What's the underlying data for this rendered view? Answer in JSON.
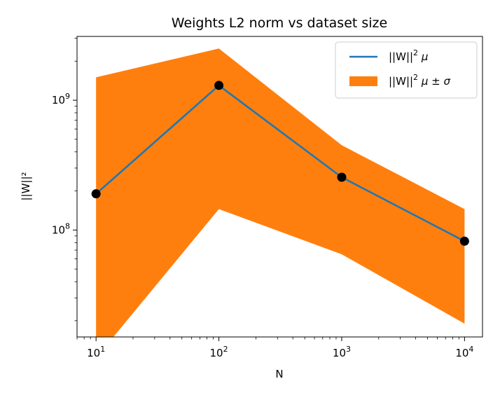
{
  "chart_data": {
    "type": "line",
    "title": "Weights L2 norm vs dataset size",
    "xlabel": "N",
    "ylabel": "||W||²",
    "xscale": "log",
    "yscale": "log",
    "xlim": [
      7,
      14000
    ],
    "ylim": [
      15000000,
      3100000000
    ],
    "x": [
      10,
      100,
      1000,
      10000
    ],
    "x_ticks": [
      {
        "value": 10,
        "base": "10",
        "exp": "1"
      },
      {
        "value": 100,
        "base": "10",
        "exp": "2"
      },
      {
        "value": 1000,
        "base": "10",
        "exp": "3"
      },
      {
        "value": 10000,
        "base": "10",
        "exp": "4"
      }
    ],
    "y_ticks": [
      {
        "value": 100000000,
        "base": "10",
        "exp": "8"
      },
      {
        "value": 1000000000,
        "base": "10",
        "exp": "9"
      }
    ],
    "series": [
      {
        "name": "||W||² μ",
        "kind": "line",
        "color": "#1f77b4",
        "marker_color": "#000000",
        "values": [
          190000000,
          1300000000,
          255000000,
          82000000
        ]
      },
      {
        "name": "||W||² μ ± σ",
        "kind": "band",
        "color": "#ff7f0e",
        "upper": [
          1500000000,
          2500000000,
          450000000,
          145000000
        ],
        "lower": [
          1,
          145000000,
          65000000,
          19000000
        ]
      }
    ],
    "legend": {
      "position": "top-right",
      "entries": [
        {
          "label": "||W||",
          "sup": "2",
          "suffix": " μ"
        },
        {
          "label": "||W||",
          "sup": "2",
          "suffix": " μ ± σ"
        }
      ]
    },
    "grid": false
  }
}
